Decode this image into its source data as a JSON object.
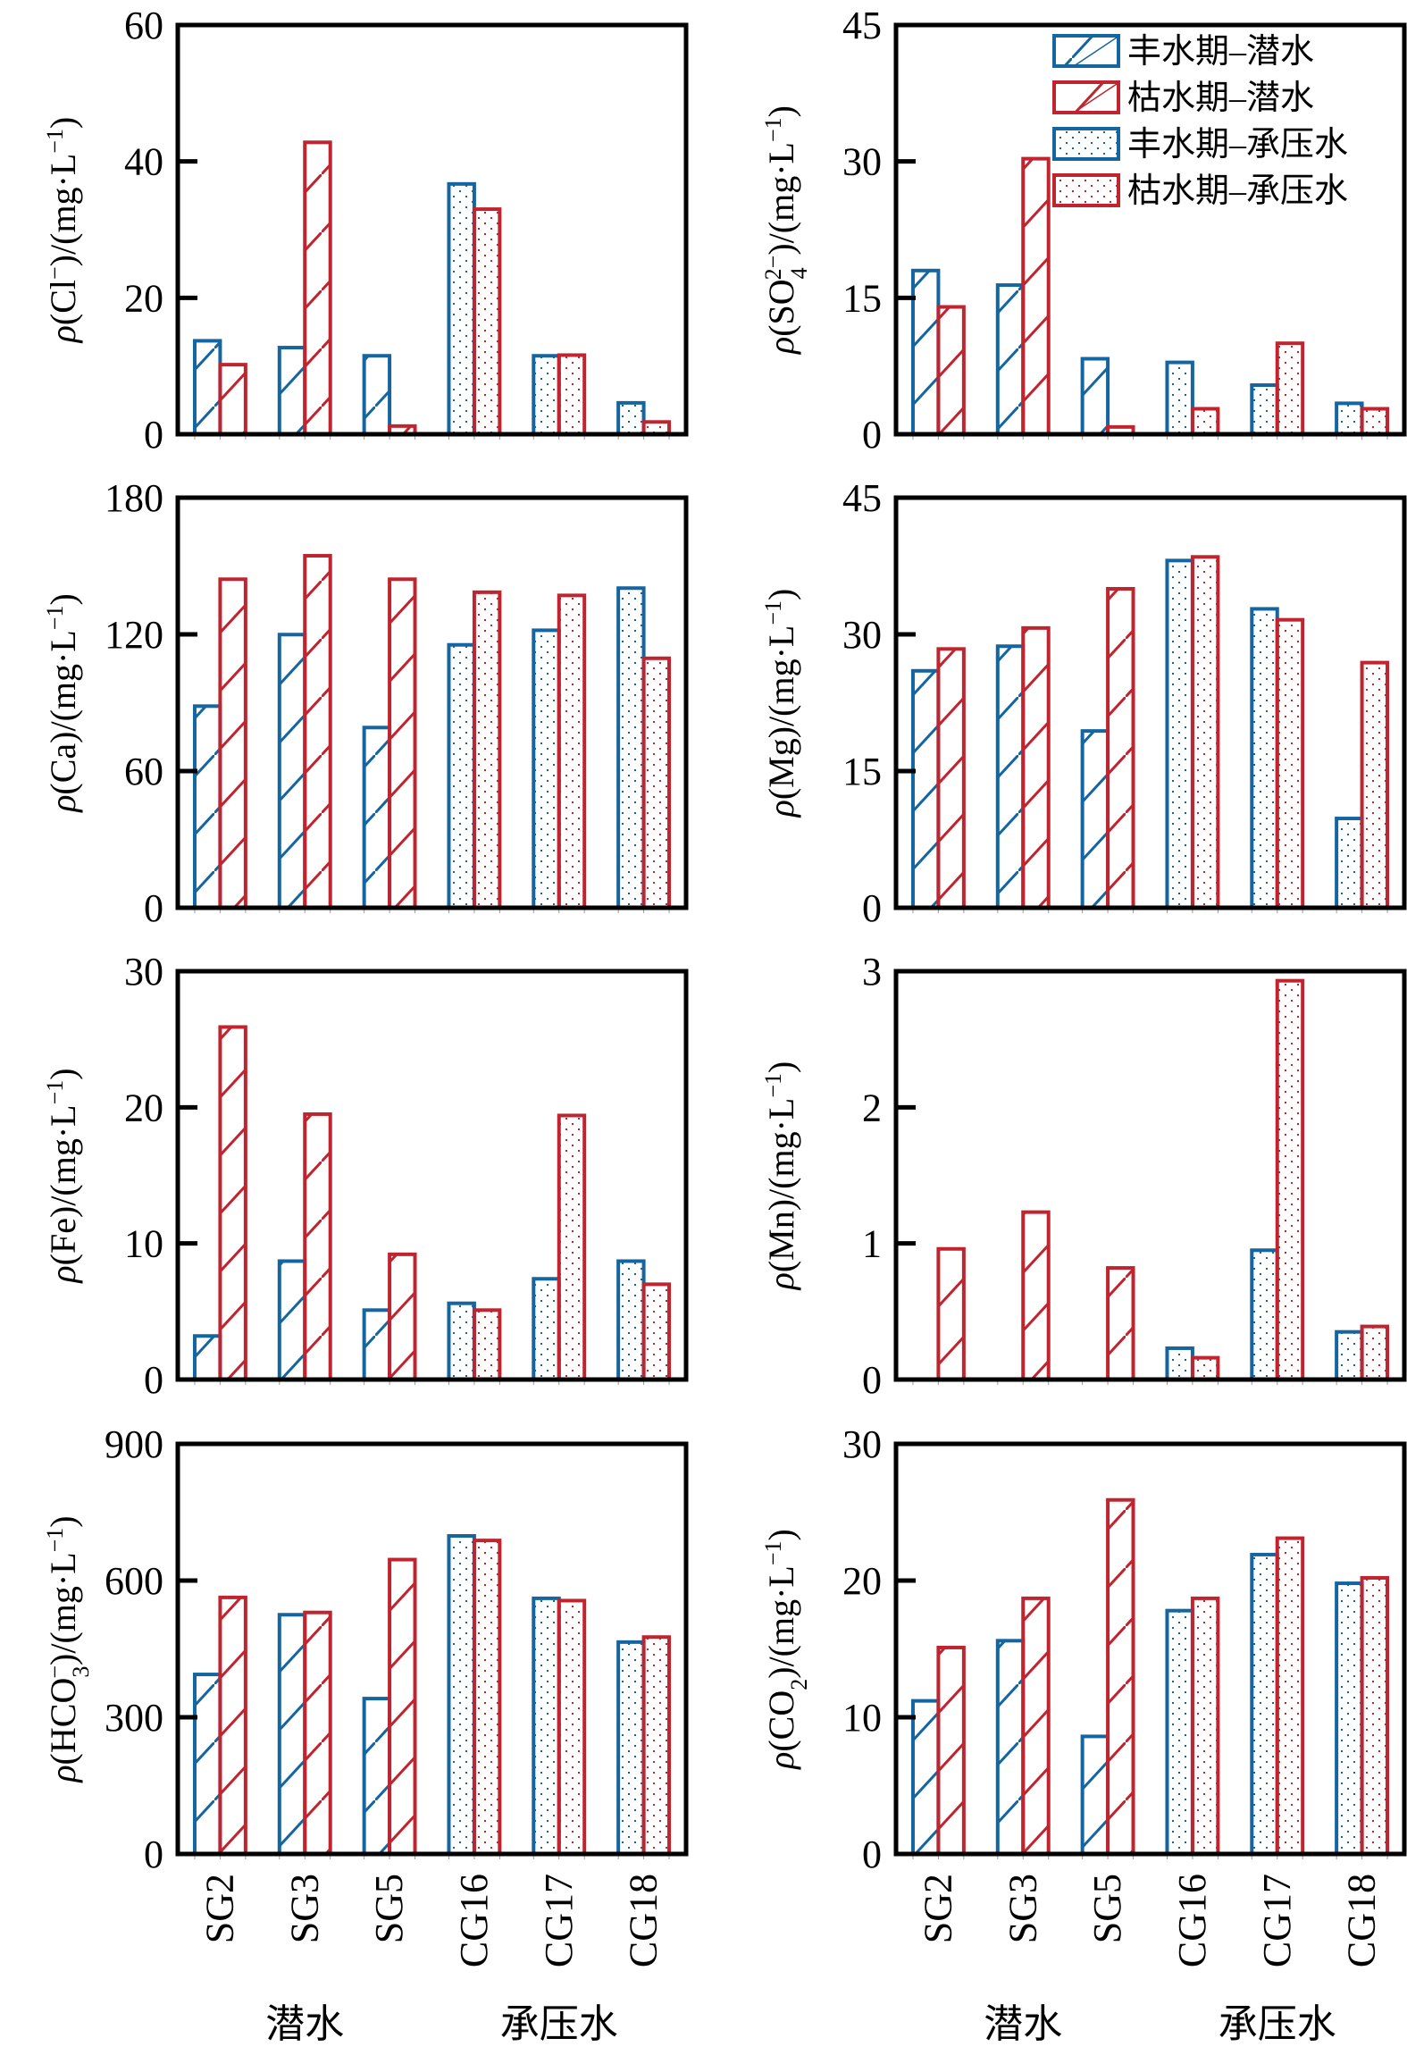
{
  "colors": {
    "wet": "#1565a0",
    "dry": "#c0242e",
    "axis": "#000000"
  },
  "legend": [
    {
      "label": "丰水期–潜水",
      "color_key": "wet",
      "pattern": "hatch"
    },
    {
      "label": "枯水期–潜水",
      "color_key": "dry",
      "pattern": "hatch"
    },
    {
      "label": "丰水期–承压水",
      "color_key": "wet",
      "pattern": "dots"
    },
    {
      "label": "枯水期–承压水",
      "color_key": "dry",
      "pattern": "dots"
    }
  ],
  "categories": [
    "SG2",
    "SG3",
    "SG5",
    "CG16",
    "CG17",
    "CG18"
  ],
  "category_groups": [
    {
      "label": "潜水",
      "members": [
        "SG2",
        "SG3",
        "SG5"
      ],
      "pattern": "hatch"
    },
    {
      "label": "承压水",
      "members": [
        "CG16",
        "CG17",
        "CG18"
      ],
      "pattern": "dots"
    }
  ],
  "chart_data": [
    {
      "type": "bar",
      "title": "",
      "ylabel": "ρ(Cl⁻)/(mg·L⁻¹)",
      "ylabel_parts": {
        "species": "Cl",
        "sup": "−",
        "sub": ""
      },
      "xlabel": "",
      "ylim": [
        0,
        60
      ],
      "yticks": [
        0,
        20,
        40,
        60
      ],
      "grid": false,
      "categories": [
        "SG2",
        "SG3",
        "SG5",
        "CG16",
        "CG17",
        "CG18"
      ],
      "series": [
        {
          "name": "丰水期",
          "values": [
            13.7,
            12.7,
            11.5,
            36.7,
            11.5,
            4.6
          ]
        },
        {
          "name": "枯水期",
          "values": [
            10.2,
            42.8,
            1.2,
            33.0,
            11.6,
            1.8
          ]
        }
      ]
    },
    {
      "type": "bar",
      "title": "",
      "ylabel": "ρ(SO₄²⁻)/(mg·L⁻¹)",
      "ylabel_parts": {
        "species": "SO",
        "sup": "2−",
        "sub": "4"
      },
      "xlabel": "",
      "ylim": [
        0,
        45
      ],
      "yticks": [
        0,
        15,
        30,
        45
      ],
      "grid": false,
      "legend_position": "top-right",
      "categories": [
        "SG2",
        "SG3",
        "SG5",
        "CG16",
        "CG17",
        "CG18"
      ],
      "series": [
        {
          "name": "丰水期",
          "values": [
            18.0,
            16.4,
            8.3,
            7.9,
            5.4,
            3.4
          ]
        },
        {
          "name": "枯水期",
          "values": [
            14.0,
            30.3,
            0.8,
            2.8,
            10.0,
            2.8
          ]
        }
      ]
    },
    {
      "type": "bar",
      "title": "",
      "ylabel": "ρ(Ca)/(mg·L⁻¹)",
      "ylabel_parts": {
        "species": "Ca",
        "sup": "",
        "sub": ""
      },
      "xlabel": "",
      "ylim": [
        0,
        180
      ],
      "yticks": [
        0,
        60,
        120,
        180
      ],
      "grid": false,
      "categories": [
        "SG2",
        "SG3",
        "SG5",
        "CG16",
        "CG17",
        "CG18"
      ],
      "series": [
        {
          "name": "丰水期",
          "values": [
            88.5,
            119.9,
            79.1,
            115.4,
            121.8,
            140.3
          ]
        },
        {
          "name": "枯水期",
          "values": [
            144.2,
            154.5,
            144.2,
            138.5,
            137.1,
            109.5
          ]
        }
      ]
    },
    {
      "type": "bar",
      "title": "",
      "ylabel": "ρ(Mg)/(mg·L⁻¹)",
      "ylabel_parts": {
        "species": "Mg",
        "sup": "",
        "sub": ""
      },
      "xlabel": "",
      "ylim": [
        0,
        45
      ],
      "yticks": [
        0,
        15,
        30,
        45
      ],
      "grid": false,
      "categories": [
        "SG2",
        "SG3",
        "SG5",
        "CG16",
        "CG17",
        "CG18"
      ],
      "series": [
        {
          "name": "丰水期",
          "values": [
            26.0,
            28.7,
            19.4,
            38.1,
            32.8,
            9.8
          ]
        },
        {
          "name": "枯水期",
          "values": [
            28.4,
            30.7,
            35.0,
            38.5,
            31.6,
            26.9
          ]
        }
      ]
    },
    {
      "type": "bar",
      "title": "",
      "ylabel": "ρ(Fe)/(mg·L⁻¹)",
      "ylabel_parts": {
        "species": "Fe",
        "sup": "",
        "sub": ""
      },
      "xlabel": "",
      "ylim": [
        0,
        30
      ],
      "yticks": [
        0,
        10,
        20,
        30
      ],
      "grid": false,
      "categories": [
        "SG2",
        "SG3",
        "SG5",
        "CG16",
        "CG17",
        "CG18"
      ],
      "series": [
        {
          "name": "丰水期",
          "values": [
            3.2,
            8.7,
            5.1,
            5.6,
            7.4,
            8.7
          ]
        },
        {
          "name": "枯水期",
          "values": [
            25.9,
            19.5,
            9.2,
            5.1,
            19.4,
            7.0
          ]
        }
      ]
    },
    {
      "type": "bar",
      "title": "",
      "ylabel": "ρ(Mn)/(mg·L⁻¹)",
      "ylabel_parts": {
        "species": "Mn",
        "sup": "",
        "sub": ""
      },
      "xlabel": "",
      "ylim": [
        0,
        3
      ],
      "yticks": [
        0,
        1,
        2,
        3
      ],
      "grid": false,
      "categories": [
        "SG2",
        "SG3",
        "SG5",
        "CG16",
        "CG17",
        "CG18"
      ],
      "series": [
        {
          "name": "丰水期",
          "values": [
            0,
            0,
            0,
            0.23,
            0.95,
            0.35
          ]
        },
        {
          "name": "枯水期",
          "values": [
            0.96,
            1.23,
            0.82,
            0.16,
            2.93,
            0.39
          ]
        }
      ]
    },
    {
      "type": "bar",
      "title": "",
      "ylabel": "ρ(HCO₃⁻)/(mg·L⁻¹)",
      "ylabel_parts": {
        "species": "HCO",
        "sup": "−",
        "sub": "3"
      },
      "xlabel": "",
      "ylim": [
        0,
        900
      ],
      "yticks": [
        0,
        300,
        600,
        900
      ],
      "grid": false,
      "categories": [
        "SG2",
        "SG3",
        "SG5",
        "CG16",
        "CG17",
        "CG18"
      ],
      "series": [
        {
          "name": "丰水期",
          "values": [
            394,
            525,
            341,
            698,
            561,
            465
          ]
        },
        {
          "name": "枯水期",
          "values": [
            563,
            530,
            646,
            688,
            556,
            476
          ]
        }
      ]
    },
    {
      "type": "bar",
      "title": "",
      "ylabel": "ρ(CO₂)/(mg·L⁻¹)",
      "ylabel_parts": {
        "species": "CO",
        "sup": "",
        "sub": "2"
      },
      "xlabel": "",
      "ylim": [
        0,
        30
      ],
      "yticks": [
        0,
        10,
        20,
        30
      ],
      "grid": false,
      "categories": [
        "SG2",
        "SG3",
        "SG5",
        "CG16",
        "CG17",
        "CG18"
      ],
      "series": [
        {
          "name": "丰水期",
          "values": [
            11.2,
            15.6,
            8.6,
            17.8,
            21.9,
            19.8
          ]
        },
        {
          "name": "枯水期",
          "values": [
            15.1,
            18.7,
            25.9,
            18.7,
            23.1,
            20.2
          ]
        }
      ]
    }
  ]
}
